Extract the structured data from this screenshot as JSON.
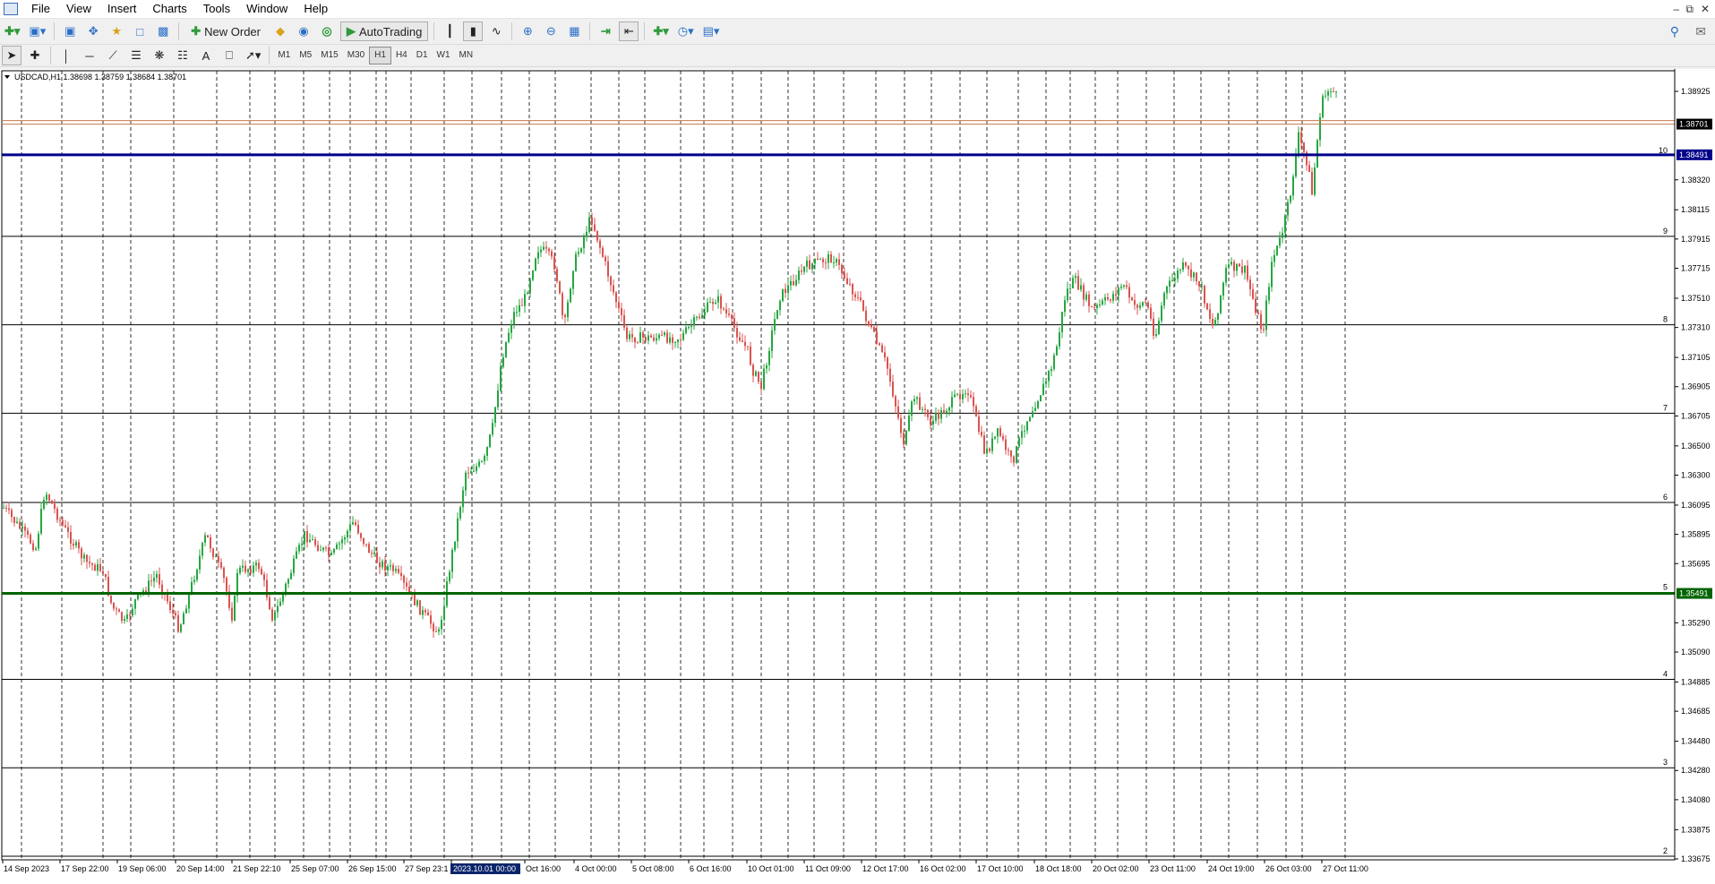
{
  "menu": [
    "File",
    "View",
    "Insert",
    "Charts",
    "Tools",
    "Window",
    "Help"
  ],
  "toolbar": {
    "new_order_label": "New Order",
    "autotrading_label": "AutoTrading",
    "timeframes": [
      "M1",
      "M5",
      "M15",
      "M30",
      "H1",
      "H4",
      "D1",
      "W1",
      "MN"
    ],
    "active_timeframe": "H1"
  },
  "chart": {
    "symbol_info": "USDCAD,H1  1.38698 1.38759 1.38684 1.38701",
    "y_ticks": [
      "1.38925",
      "1.38701",
      "1.38491",
      "1.38320",
      "1.38115",
      "1.37915",
      "1.37715",
      "1.37510",
      "1.37310",
      "1.37105",
      "1.36905",
      "1.36705",
      "1.36500",
      "1.36300",
      "1.36095",
      "1.35895",
      "1.35695",
      "1.35491",
      "1.35290",
      "1.35090",
      "1.34885",
      "1.34685",
      "1.34480",
      "1.34280",
      "1.34080",
      "1.33875",
      "1.33675"
    ],
    "x_ticks": [
      "14 Sep 2023",
      "17 Sep 22:00",
      "19 Sep 06:00",
      "20 Sep 14:00",
      "21 Sep 22:10",
      "25 Sep 07:00",
      "26 Sep 15:00",
      "27 Sep 23:1",
      "2023.10.01 00:00",
      "Oct 16:00",
      "4 Oct 00:00",
      "5 Oct 08:00",
      "6 Oct 16:00",
      "10 Oct 01:00",
      "11 Oct 09:00",
      "12 Oct 17:00",
      "16 Oct 02:00",
      "17 Oct 10:00",
      "18 Oct 18:00",
      "20 Oct 02:00",
      "23 Oct 11:00",
      "24 Oct 19:00",
      "26 Oct 03:00",
      "27 Oct 11:00"
    ],
    "level_labels": [
      "10",
      "9",
      "8",
      "7",
      "6",
      "5",
      "4",
      "3",
      "2"
    ],
    "bid_label": "1.38701",
    "blue_line_label": "1.38491",
    "green_line_label": "1.35491",
    "colors": {
      "bull": "#26a641",
      "bear": "#d9534f",
      "blue_line": "#00008b",
      "green_line": "#006400",
      "bid_line": "#c47a4a"
    }
  }
}
